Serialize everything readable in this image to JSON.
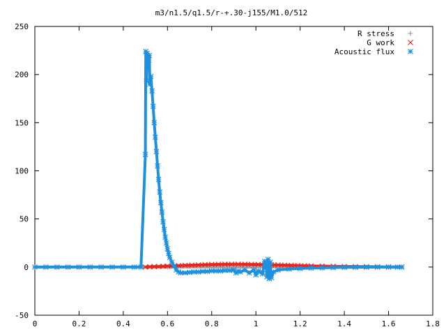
{
  "chart_data": {
    "type": "scatter",
    "title": "m3/n1.5/q1.5/r-+.30-j155/M1.0/512",
    "xlabel": "",
    "ylabel": "",
    "xlim": [
      0,
      1.8
    ],
    "ylim": [
      -50,
      250
    ],
    "x_ticks": [
      "0",
      "0.2",
      "0.4",
      "0.6",
      "0.8",
      "1",
      "1.2",
      "1.4",
      "1.6",
      "1.8"
    ],
    "y_ticks": [
      "-50",
      "0",
      "50",
      "100",
      "150",
      "200",
      "250"
    ],
    "grid": false,
    "legend_position": "top-right",
    "series": [
      {
        "name": "R stress",
        "color": "#a0a0a0",
        "marker": "plus",
        "x": [
          0.0,
          0.2,
          0.4,
          0.6,
          0.8,
          1.0,
          1.2,
          1.4,
          1.6,
          1.66
        ],
        "y": [
          0,
          0,
          0,
          0,
          0,
          0,
          0,
          0,
          0,
          0
        ]
      },
      {
        "name": "G work",
        "color": "#e8241c",
        "marker": "cross",
        "x": [
          0.5,
          0.52,
          0.54,
          0.56,
          0.58,
          0.6,
          0.62,
          0.65,
          0.68,
          0.71,
          0.74,
          0.77,
          0.8,
          0.83,
          0.86,
          0.89,
          0.92,
          0.95,
          0.98,
          1.01,
          1.04,
          1.07,
          1.1,
          1.13,
          1.16,
          1.19,
          1.22,
          1.25,
          1.3,
          1.35,
          1.4,
          1.45,
          1.5,
          1.55,
          1.6,
          1.66
        ],
        "y": [
          0,
          0.3,
          0.5,
          0.6,
          0.8,
          1.0,
          1.2,
          1.5,
          1.8,
          2.0,
          2.2,
          2.5,
          2.7,
          2.8,
          3.0,
          3.0,
          3.0,
          2.9,
          2.8,
          2.7,
          2.6,
          2.4,
          2.2,
          2.0,
          1.8,
          1.6,
          1.4,
          1.2,
          1.0,
          0.8,
          0.6,
          0.5,
          0.4,
          0.3,
          0.2,
          0.1
        ]
      },
      {
        "name": "Acoustic flux",
        "color": "#1e90e0",
        "marker": "star",
        "x": [
          0.0,
          0.05,
          0.1,
          0.15,
          0.2,
          0.25,
          0.3,
          0.35,
          0.4,
          0.45,
          0.48,
          0.5,
          0.502,
          0.505,
          0.508,
          0.51,
          0.512,
          0.515,
          0.518,
          0.52,
          0.525,
          0.53,
          0.535,
          0.54,
          0.545,
          0.55,
          0.555,
          0.56,
          0.565,
          0.57,
          0.575,
          0.58,
          0.585,
          0.59,
          0.595,
          0.6,
          0.605,
          0.61,
          0.62,
          0.63,
          0.64,
          0.65,
          0.66,
          0.68,
          0.7,
          0.72,
          0.74,
          0.76,
          0.78,
          0.8,
          0.82,
          0.84,
          0.86,
          0.88,
          0.9,
          0.91,
          0.92,
          0.93,
          0.95,
          0.97,
          0.99,
          1.0,
          1.01,
          1.02,
          1.03,
          1.04,
          1.045,
          1.05,
          1.055,
          1.06,
          1.065,
          1.07,
          1.08,
          1.1,
          1.15,
          1.2,
          1.25,
          1.3,
          1.35,
          1.4,
          1.45,
          1.5,
          1.55,
          1.6,
          1.64,
          1.66
        ],
        "y": [
          0,
          0,
          0,
          0,
          0,
          0,
          0,
          0,
          0,
          0,
          0,
          117,
          224,
          193,
          222,
          205,
          218,
          215,
          220,
          190,
          198,
          183,
          167,
          150,
          135,
          120,
          105,
          91,
          78,
          67,
          57,
          47,
          39,
          31,
          25,
          19,
          14,
          10,
          5,
          1,
          -3,
          -5,
          -6,
          -6,
          -5.5,
          -5,
          -5,
          -4.5,
          -4.5,
          -4,
          -4,
          -4,
          -3.5,
          -3.5,
          -3,
          -6,
          -4,
          -5,
          -3,
          -6,
          -3,
          -8,
          -4,
          -5,
          -7,
          6,
          3,
          -10,
          8,
          -12,
          5,
          -11,
          -5,
          -3,
          -2,
          -1.5,
          -1,
          -0.8,
          -0.5,
          -0.3,
          -0.2,
          -0.1,
          0,
          0,
          0,
          0
        ]
      }
    ]
  }
}
